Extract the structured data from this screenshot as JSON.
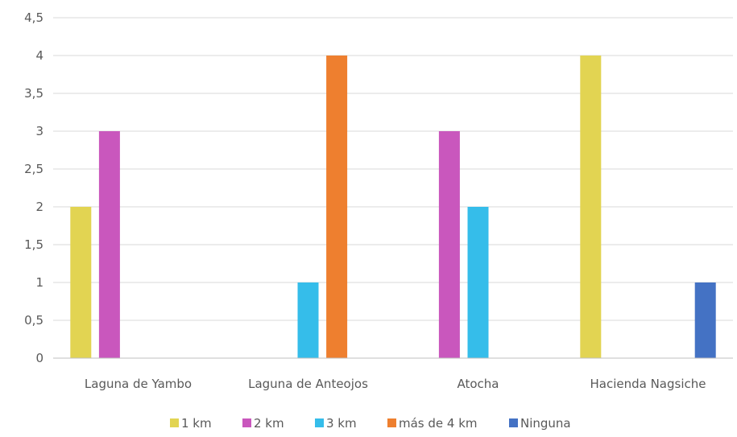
{
  "chart_data": {
    "type": "bar",
    "title": "",
    "xlabel": "",
    "ylabel": "",
    "categories": [
      "Laguna de Yambo",
      "Laguna de Anteojos",
      "Atocha",
      "Hacienda Nagsiche"
    ],
    "series": [
      {
        "name": "1 km",
        "color": "#e2d452",
        "values": [
          2,
          0,
          0,
          4
        ]
      },
      {
        "name": "2 km",
        "color": "#c957bd",
        "values": [
          3,
          0,
          3,
          0
        ]
      },
      {
        "name": "3 km",
        "color": "#35bdea",
        "values": [
          0,
          1,
          2,
          0
        ]
      },
      {
        "name": "más de 4 km",
        "color": "#ee7f2f",
        "values": [
          0,
          4,
          0,
          0
        ]
      },
      {
        "name": "Ninguna",
        "color": "#4472c4",
        "values": [
          0,
          0,
          0,
          1
        ]
      }
    ],
    "yticks": [
      "0",
      "0,5",
      "1",
      "1,5",
      "2",
      "2,5",
      "3",
      "3,5",
      "4",
      "4,5"
    ],
    "ylim": [
      0,
      4.5
    ],
    "grid": true,
    "legend": "bottom"
  }
}
